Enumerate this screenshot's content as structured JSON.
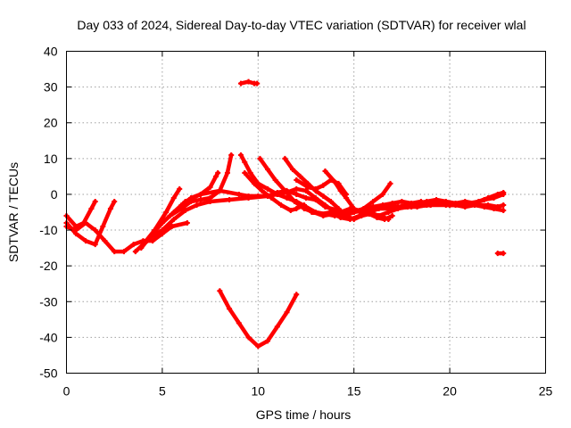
{
  "chart_data": {
    "type": "line",
    "title": "Day 033 of 2024, Sidereal Day-to-day VTEC variation (SDTVAR) for receiver wlal",
    "xlabel": "GPS time / hours",
    "ylabel": "SDTVAR / TECUs",
    "xlim": [
      0,
      25
    ],
    "ylim": [
      -50,
      40
    ],
    "xticks": [
      0,
      5,
      10,
      15,
      20,
      25
    ],
    "yticks": [
      -50,
      -40,
      -30,
      -20,
      -10,
      0,
      10,
      20,
      30,
      40
    ],
    "xtick_labels": [
      "0",
      "5",
      "10",
      "15",
      "20",
      "25"
    ],
    "ytick_labels": [
      "-50",
      "-40",
      "-30",
      "-20",
      "-10",
      "0",
      "10",
      "20",
      "30",
      "40"
    ],
    "grid": true,
    "color": "#ff0000",
    "series": [
      {
        "name": "arc-1",
        "points": [
          [
            0,
            -6
          ],
          [
            0.5,
            -9
          ],
          [
            0.9,
            -8
          ],
          [
            1.3,
            -4
          ],
          [
            1.5,
            -2
          ]
        ]
      },
      {
        "name": "arc-2",
        "points": [
          [
            0,
            -8
          ],
          [
            0.5,
            -11
          ],
          [
            1.0,
            -13
          ],
          [
            1.5,
            -14
          ],
          [
            1.9,
            -9
          ],
          [
            2.3,
            -4
          ],
          [
            2.5,
            -2
          ]
        ]
      },
      {
        "name": "arc-3",
        "points": [
          [
            0,
            -9
          ],
          [
            0.5,
            -10
          ],
          [
            1.0,
            -8
          ],
          [
            1.5,
            -10
          ],
          [
            2.0,
            -13
          ],
          [
            2.5,
            -16
          ],
          [
            3.0,
            -16
          ],
          [
            3.5,
            -14
          ],
          [
            4.0,
            -13
          ],
          [
            4.5,
            -13
          ],
          [
            5.0,
            -11
          ],
          [
            5.5,
            -9
          ],
          [
            6.3,
            -8
          ]
        ]
      },
      {
        "name": "arc-4",
        "points": [
          [
            3.6,
            -16
          ],
          [
            4.2,
            -13
          ],
          [
            4.8,
            -9
          ],
          [
            5.4,
            -6
          ],
          [
            6.0,
            -4
          ],
          [
            6.5,
            -2
          ],
          [
            7.0,
            -1.5
          ],
          [
            7.5,
            -1
          ],
          [
            8.0,
            1
          ],
          [
            8.4,
            6
          ],
          [
            8.6,
            11
          ]
        ]
      },
      {
        "name": "arc-5",
        "points": [
          [
            3.9,
            -15
          ],
          [
            4.5,
            -11
          ],
          [
            5.0,
            -8
          ],
          [
            5.6,
            -5
          ],
          [
            6.2,
            -2
          ],
          [
            7.0,
            0
          ],
          [
            7.5,
            2
          ],
          [
            7.8,
            5
          ],
          [
            7.9,
            6
          ]
        ]
      },
      {
        "name": "arc-6",
        "points": [
          [
            4.0,
            -14
          ],
          [
            4.6,
            -10
          ],
          [
            5.2,
            -5
          ],
          [
            5.6,
            -1
          ],
          [
            5.9,
            1.5
          ]
        ]
      },
      {
        "name": "arc-7",
        "points": [
          [
            4.4,
            -12
          ],
          [
            5.0,
            -10
          ],
          [
            5.6,
            -7
          ],
          [
            6.2,
            -4.5
          ],
          [
            6.8,
            -3
          ],
          [
            7.5,
            -2
          ],
          [
            8.5,
            -1.5
          ],
          [
            9.5,
            -1
          ],
          [
            10.5,
            -0.5
          ],
          [
            11.0,
            0.5
          ],
          [
            11.5,
            1
          ],
          [
            12.0,
            0
          ],
          [
            12.5,
            -1
          ],
          [
            13.0,
            -1.5
          ],
          [
            13.5,
            -3.5
          ],
          [
            14.5,
            -5
          ],
          [
            15.0,
            -5
          ],
          [
            15.5,
            -4.5
          ],
          [
            16.0,
            -4
          ],
          [
            17.0,
            -4
          ],
          [
            18.0,
            -3.5
          ],
          [
            19.0,
            -3
          ],
          [
            20.0,
            -3
          ],
          [
            21.0,
            -3
          ],
          [
            22.0,
            -3
          ],
          [
            22.5,
            -3.5
          ],
          [
            22.8,
            -3
          ]
        ]
      },
      {
        "name": "arc-8",
        "points": [
          [
            6.0,
            -3
          ],
          [
            6.5,
            -1
          ],
          [
            7.0,
            0
          ],
          [
            8.0,
            1
          ],
          [
            9.0,
            0
          ],
          [
            9.5,
            -0.5
          ],
          [
            10.0,
            -0.5
          ],
          [
            10.5,
            -0.5
          ],
          [
            11.0,
            0
          ],
          [
            11.5,
            0.5
          ],
          [
            12.0,
            1.5
          ],
          [
            12.5,
            1
          ],
          [
            13.0,
            -1
          ],
          [
            13.5,
            -3
          ],
          [
            14.0,
            -5
          ],
          [
            14.5,
            -6
          ],
          [
            15.0,
            -5
          ],
          [
            15.5,
            -4
          ],
          [
            16.0,
            -2
          ],
          [
            16.5,
            0
          ],
          [
            16.9,
            3
          ]
        ]
      },
      {
        "name": "arc-9",
        "points": [
          [
            9.1,
            11
          ],
          [
            9.3,
            9
          ],
          [
            9.6,
            6
          ],
          [
            10.0,
            3
          ],
          [
            10.5,
            1.5
          ],
          [
            11.0,
            0
          ],
          [
            11.5,
            -1
          ],
          [
            12.0,
            -2
          ],
          [
            12.5,
            -3.5
          ],
          [
            13.0,
            -5
          ],
          [
            13.5,
            -5.5
          ],
          [
            14.0,
            -6
          ],
          [
            14.5,
            -6
          ],
          [
            15.0,
            -5
          ],
          [
            15.5,
            -4
          ],
          [
            16.0,
            -3.5
          ],
          [
            16.5,
            -3
          ],
          [
            17.0,
            -2.5
          ],
          [
            17.5,
            -2
          ],
          [
            18.0,
            -2.5
          ],
          [
            18.5,
            -2
          ],
          [
            19.0,
            -3
          ],
          [
            19.5,
            -2.5
          ],
          [
            20.0,
            -3
          ],
          [
            20.5,
            -3
          ],
          [
            21.0,
            -2.5
          ],
          [
            21.5,
            -2
          ],
          [
            22.0,
            -1
          ],
          [
            22.5,
            0
          ],
          [
            22.8,
            0.5
          ]
        ]
      },
      {
        "name": "arc-10",
        "points": [
          [
            9.3,
            6
          ],
          [
            9.8,
            3
          ],
          [
            10.2,
            1
          ],
          [
            10.7,
            -1
          ],
          [
            11.2,
            -3
          ],
          [
            11.7,
            -4.5
          ],
          [
            12.0,
            -4
          ],
          [
            12.4,
            -3
          ],
          [
            12.8,
            -5
          ],
          [
            13.3,
            -5.5
          ],
          [
            13.8,
            -5
          ],
          [
            14.3,
            -6.5
          ],
          [
            14.8,
            -7
          ],
          [
            15.3,
            -6
          ],
          [
            15.8,
            -5
          ],
          [
            16.3,
            -6
          ],
          [
            16.8,
            -5
          ],
          [
            17.3,
            -4
          ],
          [
            17.8,
            -3.5
          ],
          [
            18.3,
            -3.5
          ],
          [
            18.8,
            -3
          ],
          [
            19.3,
            -2.5
          ],
          [
            19.8,
            -3
          ],
          [
            20.3,
            -3
          ],
          [
            20.8,
            -3.5
          ],
          [
            21.3,
            -3
          ],
          [
            21.8,
            -3.5
          ],
          [
            22.3,
            -4
          ],
          [
            22.8,
            -4.5
          ]
        ]
      },
      {
        "name": "arc-11",
        "points": [
          [
            10.1,
            10
          ],
          [
            10.5,
            7
          ],
          [
            10.9,
            4
          ],
          [
            11.4,
            1
          ],
          [
            11.9,
            -2
          ],
          [
            12.4,
            -4
          ],
          [
            12.9,
            -5
          ],
          [
            13.4,
            -6
          ],
          [
            13.9,
            -5.5
          ],
          [
            14.4,
            -5
          ],
          [
            14.9,
            -4.5
          ],
          [
            15.4,
            -5
          ],
          [
            15.9,
            -5.5
          ],
          [
            16.4,
            -6
          ],
          [
            16.8,
            -7
          ]
        ]
      },
      {
        "name": "arc-12",
        "points": [
          [
            11.4,
            10
          ],
          [
            11.8,
            7
          ],
          [
            12.2,
            5
          ],
          [
            12.6,
            3
          ],
          [
            13.0,
            1
          ],
          [
            13.4,
            -0.5
          ],
          [
            13.8,
            -2
          ],
          [
            14.2,
            -4
          ],
          [
            14.6,
            -6
          ],
          [
            15.0,
            -7
          ],
          [
            15.4,
            -6
          ],
          [
            15.8,
            -5.5
          ],
          [
            16.2,
            -6.5
          ],
          [
            16.6,
            -7
          ],
          [
            17.0,
            -6
          ]
        ]
      },
      {
        "name": "arc-13",
        "points": [
          [
            13.5,
            6.5
          ],
          [
            14.0,
            3.5
          ],
          [
            14.3,
            1
          ],
          [
            14.6,
            -1
          ],
          [
            15.0,
            -4
          ],
          [
            15.4,
            -5
          ],
          [
            15.8,
            -4
          ]
        ]
      },
      {
        "name": "arc-14",
        "points": [
          [
            12.0,
            4
          ],
          [
            12.6,
            2
          ],
          [
            13.0,
            1.5
          ],
          [
            13.4,
            2.5
          ],
          [
            13.8,
            4
          ],
          [
            14.2,
            3
          ],
          [
            14.6,
            0
          ]
        ]
      },
      {
        "name": "arc-15",
        "points": [
          [
            14.3,
            -5
          ],
          [
            14.8,
            -4
          ],
          [
            15.3,
            -4.5
          ],
          [
            15.8,
            -5
          ],
          [
            16.3,
            -4
          ],
          [
            16.8,
            -3
          ],
          [
            17.3,
            -3.5
          ],
          [
            17.8,
            -3
          ],
          [
            18.3,
            -2.5
          ],
          [
            18.8,
            -2
          ],
          [
            19.3,
            -1.5
          ],
          [
            19.8,
            -2
          ],
          [
            20.3,
            -2.5
          ],
          [
            20.8,
            -2
          ],
          [
            21.3,
            -2.5
          ],
          [
            21.8,
            -1.5
          ],
          [
            22.3,
            -1
          ],
          [
            22.8,
            0
          ]
        ]
      },
      {
        "name": "arc-16",
        "points": [
          [
            8.0,
            -27
          ],
          [
            8.5,
            -32
          ],
          [
            9.0,
            -36
          ],
          [
            9.5,
            -40
          ],
          [
            10.0,
            -42.5
          ],
          [
            10.5,
            -41
          ],
          [
            11.0,
            -37
          ],
          [
            11.5,
            -33
          ],
          [
            12.0,
            -28
          ]
        ]
      },
      {
        "name": "arc-17",
        "points": [
          [
            9.1,
            31
          ],
          [
            9.5,
            31.5
          ],
          [
            9.8,
            31
          ],
          [
            9.95,
            31
          ]
        ]
      },
      {
        "name": "arc-18",
        "points": [
          [
            22.5,
            -16.5
          ],
          [
            22.8,
            -16.5
          ]
        ]
      }
    ]
  }
}
